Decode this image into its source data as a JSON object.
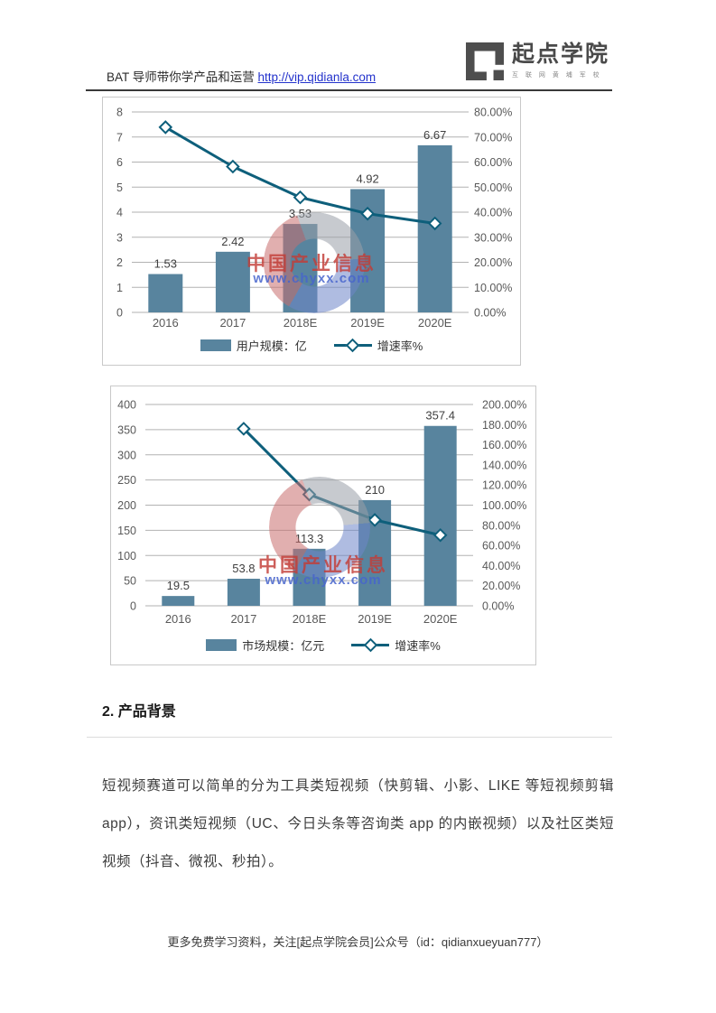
{
  "header": {
    "title": "BAT 导师带你学产品和运营",
    "link_text": "http://vip.qidianla.com",
    "logo": {
      "name": "起点学院",
      "tagline": "互 联 网 黄 埔 军 校"
    }
  },
  "watermark": {
    "title": "中国产业信息",
    "url": "www.chyxx.com"
  },
  "chart_data": [
    {
      "type": "bar+line",
      "categories": [
        "2016",
        "2017",
        "2018E",
        "2019E",
        "2020E"
      ],
      "series": [
        {
          "name": "用户规模：亿",
          "type": "bar",
          "axis": "left",
          "values": [
            1.53,
            2.42,
            3.53,
            4.92,
            6.67
          ],
          "labels": [
            "1.53",
            "2.42",
            "3.53",
            "4.92",
            "6.67"
          ]
        },
        {
          "name": "增速率%",
          "type": "line",
          "axis": "right",
          "values": [
            73.9,
            58.2,
            45.9,
            39.4,
            35.5
          ]
        }
      ],
      "left_axis": {
        "min": 0,
        "max": 8,
        "ticks": [
          "8",
          "7",
          "6",
          "5",
          "4",
          "3",
          "2",
          "1",
          "0"
        ]
      },
      "right_axis": {
        "min": 0,
        "max": 80,
        "ticks": [
          "80.00%",
          "70.00%",
          "60.00%",
          "50.00%",
          "40.00%",
          "30.00%",
          "20.00%",
          "10.00%",
          "0.00%"
        ]
      },
      "grid": true,
      "legend_position": "bottom"
    },
    {
      "type": "bar+line",
      "categories": [
        "2016",
        "2017",
        "2018E",
        "2019E",
        "2020E"
      ],
      "series": [
        {
          "name": "市场规模：亿元",
          "type": "bar",
          "axis": "left",
          "values": [
            19.5,
            53.8,
            113.3,
            210,
            357.4
          ],
          "labels": [
            "19.5",
            "53.8",
            "113.3",
            "210",
            "357.4"
          ]
        },
        {
          "name": "增速率%",
          "type": "line",
          "axis": "right",
          "values": [
            null,
            175.9,
            110.6,
            85.3,
            70.2
          ]
        }
      ],
      "left_axis": {
        "min": 0,
        "max": 400,
        "ticks": [
          "400",
          "350",
          "300",
          "250",
          "200",
          "150",
          "100",
          "50",
          "0"
        ]
      },
      "right_axis": {
        "min": 0,
        "max": 200,
        "ticks": [
          "200.00%",
          "180.00%",
          "160.00%",
          "140.00%",
          "120.00%",
          "100.00%",
          "80.00%",
          "60.00%",
          "40.00%",
          "20.00%",
          "0.00%"
        ]
      },
      "grid": true,
      "legend_position": "bottom"
    }
  ],
  "section": {
    "heading": "2. 产品背景",
    "paragraph": "短视频赛道可以简单的分为工具类短视频（快剪辑、小影、LIKE 等短视频剪辑 app），资讯类短视频（UC、今日头条等咨询类 app 的内嵌视频）以及社区类短视频（抖音、微视、秒拍）。"
  },
  "footer": {
    "text": "更多免费学习资料，关注[起点学院会员]公众号（id：qidianxueyuan777）"
  },
  "colors": {
    "bar": "#58849E",
    "line": "#0E5F7B",
    "grid": "#B2B2B2",
    "axis_text": "#595959",
    "bar_label": "#3F3F3F",
    "border": "#C9C9C9",
    "link": "#2433CC",
    "watermark_red": "#C23C36",
    "watermark_blue": "#4664CD"
  }
}
